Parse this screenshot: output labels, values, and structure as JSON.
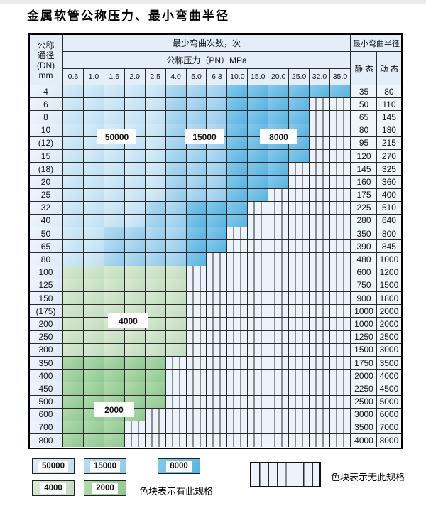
{
  "title": "金属软管公称压力、最小弯曲半径",
  "table": {
    "header": {
      "dn_lines": [
        "公称",
        "通径",
        "(DN)",
        "mm"
      ],
      "cycles_header": "最少弯曲次数，次",
      "pressure_header": "公称压力（PN）MPa",
      "radius_header": "最小弯曲半径",
      "static_label": "静 态",
      "dynamic_label": "动 态",
      "pressures": [
        "0.6",
        "1.0",
        "1.6",
        "2.0",
        "2.5",
        "4.0",
        "5.0",
        "6.3",
        "10.0",
        "15.0",
        "20.0",
        "25.0",
        "32.0",
        "35.0"
      ]
    }
  },
  "floating_labels": [
    "50000",
    "15000",
    "8000",
    "4000",
    "2000"
  ],
  "legend": {
    "items": [
      {
        "label": "50000",
        "band": "50000"
      },
      {
        "label": "15000",
        "band": "15000"
      },
      {
        "label": "8000",
        "band": "8000"
      },
      {
        "label": "4000",
        "band": "4000"
      },
      {
        "label": "2000",
        "band": "2000"
      }
    ],
    "has_spec_text": "色块表示有此规格",
    "no_spec_text": "色块表示无此规格"
  },
  "colors": {
    "c50000_light": "#d9edf9",
    "c50000_dark": "#bedff2",
    "c15000_light": "#b9ddf3",
    "c15000_dark": "#8fc9ea",
    "c8000_light": "#87caec",
    "c8000_dark": "#57b2e0",
    "c4000_light": "#d9ead4",
    "c4000_dark": "#c1dcbe",
    "c2000_light": "#b3dbb0",
    "c2000_dark": "#8dc790",
    "hatch_bg": "#edf3fa",
    "grid": "#2b2b2b"
  },
  "chart_data": {
    "type": "heatmap",
    "title": "金属软管公称压力、最小弯曲半径",
    "x_label": "公称压力（PN）MPa",
    "x": [
      0.6,
      1.0,
      1.6,
      2.0,
      2.5,
      4.0,
      5.0,
      6.3,
      10.0,
      15.0,
      20.0,
      25.0,
      32.0,
      35.0
    ],
    "y_label": "公称通径 (DN) mm",
    "value_label": "最少弯曲次数，次",
    "cycle_levels": [
      50000,
      15000,
      8000,
      4000,
      2000
    ],
    "no_spec_meaning": "hatched cells = 无此规格",
    "radius_columns": [
      "静态",
      "动态"
    ],
    "rows": [
      {
        "dn": "4",
        "bands": [
          [
            "50000",
            5
          ],
          [
            "15000",
            3
          ],
          [
            "8000",
            6
          ]
        ],
        "static": 35,
        "dynamic": 80
      },
      {
        "dn": "6",
        "bands": [
          [
            "50000",
            5
          ],
          [
            "15000",
            3
          ],
          [
            "8000",
            4
          ]
        ],
        "static": 50,
        "dynamic": 110
      },
      {
        "dn": "8",
        "bands": [
          [
            "50000",
            5
          ],
          [
            "15000",
            3
          ],
          [
            "8000",
            4
          ]
        ],
        "static": 65,
        "dynamic": 145
      },
      {
        "dn": "10",
        "bands": [
          [
            "50000",
            5
          ],
          [
            "15000",
            3
          ],
          [
            "8000",
            4
          ]
        ],
        "static": 80,
        "dynamic": 180
      },
      {
        "dn": "(12)",
        "bands": [
          [
            "50000",
            5
          ],
          [
            "15000",
            3
          ],
          [
            "8000",
            4
          ]
        ],
        "static": 95,
        "dynamic": 215
      },
      {
        "dn": "15",
        "bands": [
          [
            "50000",
            5
          ],
          [
            "15000",
            3
          ],
          [
            "8000",
            4
          ]
        ],
        "static": 120,
        "dynamic": 270
      },
      {
        "dn": "(18)",
        "bands": [
          [
            "50000",
            5
          ],
          [
            "15000",
            3
          ],
          [
            "8000",
            3
          ]
        ],
        "static": 145,
        "dynamic": 325
      },
      {
        "dn": "20",
        "bands": [
          [
            "50000",
            5
          ],
          [
            "15000",
            3
          ],
          [
            "8000",
            3
          ]
        ],
        "static": 160,
        "dynamic": 360
      },
      {
        "dn": "25",
        "bands": [
          [
            "50000",
            5
          ],
          [
            "15000",
            3
          ],
          [
            "8000",
            2
          ]
        ],
        "static": 175,
        "dynamic": 400
      },
      {
        "dn": "32",
        "bands": [
          [
            "50000",
            4
          ],
          [
            "15000",
            2
          ],
          [
            "8000",
            3
          ]
        ],
        "static": 225,
        "dynamic": 510
      },
      {
        "dn": "40",
        "bands": [
          [
            "50000",
            4
          ],
          [
            "15000",
            2
          ],
          [
            "8000",
            3
          ]
        ],
        "static": 280,
        "dynamic": 640
      },
      {
        "dn": "50",
        "bands": [
          [
            "50000",
            2
          ],
          [
            "15000",
            4
          ],
          [
            "8000",
            2
          ]
        ],
        "static": 350,
        "dynamic": 800
      },
      {
        "dn": "65",
        "bands": [
          [
            "50000",
            2
          ],
          [
            "15000",
            4
          ],
          [
            "8000",
            2
          ]
        ],
        "static": 390,
        "dynamic": 845
      },
      {
        "dn": "80",
        "bands": [
          [
            "50000",
            2
          ],
          [
            "15000",
            4
          ],
          [
            "8000",
            1
          ]
        ],
        "static": 480,
        "dynamic": 1000
      },
      {
        "dn": "100",
        "bands": [
          [
            "4000",
            6
          ]
        ],
        "static": 600,
        "dynamic": 1200
      },
      {
        "dn": "125",
        "bands": [
          [
            "4000",
            6
          ]
        ],
        "static": 750,
        "dynamic": 1500
      },
      {
        "dn": "150",
        "bands": [
          [
            "4000",
            6
          ]
        ],
        "static": 900,
        "dynamic": 1800
      },
      {
        "dn": "(175)",
        "bands": [
          [
            "4000",
            6
          ]
        ],
        "static": 1000,
        "dynamic": 2000
      },
      {
        "dn": "200",
        "bands": [
          [
            "4000",
            6
          ]
        ],
        "static": 1000,
        "dynamic": 2000
      },
      {
        "dn": "250",
        "bands": [
          [
            "4000",
            6
          ]
        ],
        "static": 1250,
        "dynamic": 2500
      },
      {
        "dn": "300",
        "bands": [
          [
            "4000",
            6
          ]
        ],
        "static": 1500,
        "dynamic": 3000
      },
      {
        "dn": "350",
        "bands": [
          [
            "2000",
            5
          ]
        ],
        "static": 1750,
        "dynamic": 3500
      },
      {
        "dn": "400",
        "bands": [
          [
            "2000",
            5
          ]
        ],
        "static": 2000,
        "dynamic": 4000
      },
      {
        "dn": "450",
        "bands": [
          [
            "2000",
            5
          ]
        ],
        "static": 2250,
        "dynamic": 4500
      },
      {
        "dn": "500",
        "bands": [
          [
            "2000",
            5
          ]
        ],
        "static": 2500,
        "dynamic": 5000
      },
      {
        "dn": "600",
        "bands": [
          [
            "2000",
            4
          ]
        ],
        "static": 3000,
        "dynamic": 6000
      },
      {
        "dn": "700",
        "bands": [
          [
            "2000",
            3
          ]
        ],
        "static": 3500,
        "dynamic": 7000
      },
      {
        "dn": "800",
        "bands": [
          [
            "2000",
            3
          ]
        ],
        "static": 4000,
        "dynamic": 8000
      }
    ]
  }
}
